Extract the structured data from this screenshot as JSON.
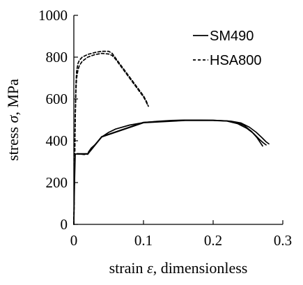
{
  "chart_data": {
    "type": "line",
    "xlabel_pre": "strain ",
    "xlabel_sym": "ε",
    "xlabel_post": ", dimensionless",
    "ylabel_pre": "stress ",
    "ylabel_sym": "σ",
    "ylabel_post": ", MPa",
    "xlim": [
      0,
      0.3
    ],
    "ylim": [
      0,
      1000
    ],
    "xticks": [
      0,
      0.1,
      0.2,
      0.3
    ],
    "xtick_labels": [
      "0",
      "0.1",
      "0.2",
      "0.3"
    ],
    "yticks": [
      0,
      200,
      400,
      600,
      800,
      1000
    ],
    "ytick_labels": [
      "0",
      "200",
      "400",
      "600",
      "800",
      "1000"
    ],
    "grid": false,
    "legend_position": "top-right",
    "series": [
      {
        "name": "SM490",
        "style": "solid",
        "color": "#000000",
        "curves": [
          [
            [
              0,
              0
            ],
            [
              0.001,
              200
            ],
            [
              0.002,
              335
            ],
            [
              0.005,
              338
            ],
            [
              0.01,
              336
            ],
            [
              0.015,
              334
            ],
            [
              0.018,
              338
            ],
            [
              0.02,
              335
            ],
            [
              0.021,
              346
            ],
            [
              0.025,
              365
            ],
            [
              0.03,
              380
            ],
            [
              0.04,
              418
            ],
            [
              0.05,
              440
            ],
            [
              0.06,
              456
            ],
            [
              0.08,
              475
            ],
            [
              0.1,
              487
            ],
            [
              0.12,
              493
            ],
            [
              0.14,
              497
            ],
            [
              0.16,
              499
            ],
            [
              0.18,
              499
            ],
            [
              0.2,
              498
            ],
            [
              0.22,
              495
            ],
            [
              0.235,
              487
            ],
            [
              0.245,
              472
            ],
            [
              0.255,
              445
            ],
            [
              0.263,
              415
            ],
            [
              0.268,
              390
            ],
            [
              0.271,
              375
            ]
          ],
          [
            [
              0.005,
              338
            ],
            [
              0.02,
              338
            ],
            [
              0.04,
              420
            ],
            [
              0.1,
              488
            ],
            [
              0.16,
              499
            ],
            [
              0.2,
              498
            ],
            [
              0.225,
              494
            ],
            [
              0.24,
              485
            ],
            [
              0.252,
              465
            ],
            [
              0.262,
              440
            ],
            [
              0.27,
              415
            ],
            [
              0.276,
              395
            ],
            [
              0.28,
              385
            ]
          ],
          [
            [
              0.005,
              336
            ],
            [
              0.02,
              336
            ],
            [
              0.04,
              418
            ],
            [
              0.1,
              486
            ],
            [
              0.16,
              497
            ],
            [
              0.2,
              497
            ],
            [
              0.22,
              494
            ],
            [
              0.235,
              482
            ],
            [
              0.248,
              460
            ],
            [
              0.258,
              435
            ],
            [
              0.266,
              408
            ],
            [
              0.272,
              390
            ],
            [
              0.276,
              380
            ]
          ]
        ]
      },
      {
        "name": "HSA800",
        "style": "dashed",
        "color": "#000000",
        "curves": [
          [
            [
              0,
              0
            ],
            [
              0.001,
              250
            ],
            [
              0.002,
              500
            ],
            [
              0.003,
              640
            ],
            [
              0.004,
              700
            ],
            [
              0.006,
              740
            ],
            [
              0.008,
              760
            ],
            [
              0.012,
              780
            ],
            [
              0.02,
              800
            ],
            [
              0.03,
              812
            ],
            [
              0.04,
              818
            ],
            [
              0.05,
              815
            ],
            [
              0.055,
              808
            ],
            [
              0.06,
              790
            ],
            [
              0.07,
              745
            ],
            [
              0.08,
              700
            ],
            [
              0.09,
              655
            ],
            [
              0.1,
              610
            ],
            [
              0.104,
              585
            ],
            [
              0.106,
              570
            ]
          ],
          [
            [
              0,
              0
            ],
            [
              0.001,
              260
            ],
            [
              0.002,
              520
            ],
            [
              0.003,
              670
            ],
            [
              0.004,
              735
            ],
            [
              0.006,
              770
            ],
            [
              0.008,
              785
            ],
            [
              0.012,
              800
            ],
            [
              0.02,
              813
            ],
            [
              0.03,
              822
            ],
            [
              0.04,
              828
            ],
            [
              0.05,
              828
            ],
            [
              0.055,
              818
            ],
            [
              0.06,
              795
            ],
            [
              0.07,
              750
            ],
            [
              0.08,
              705
            ],
            [
              0.09,
              660
            ],
            [
              0.1,
              615
            ],
            [
              0.104,
              590
            ],
            [
              0.107,
              565
            ]
          ]
        ]
      }
    ]
  }
}
